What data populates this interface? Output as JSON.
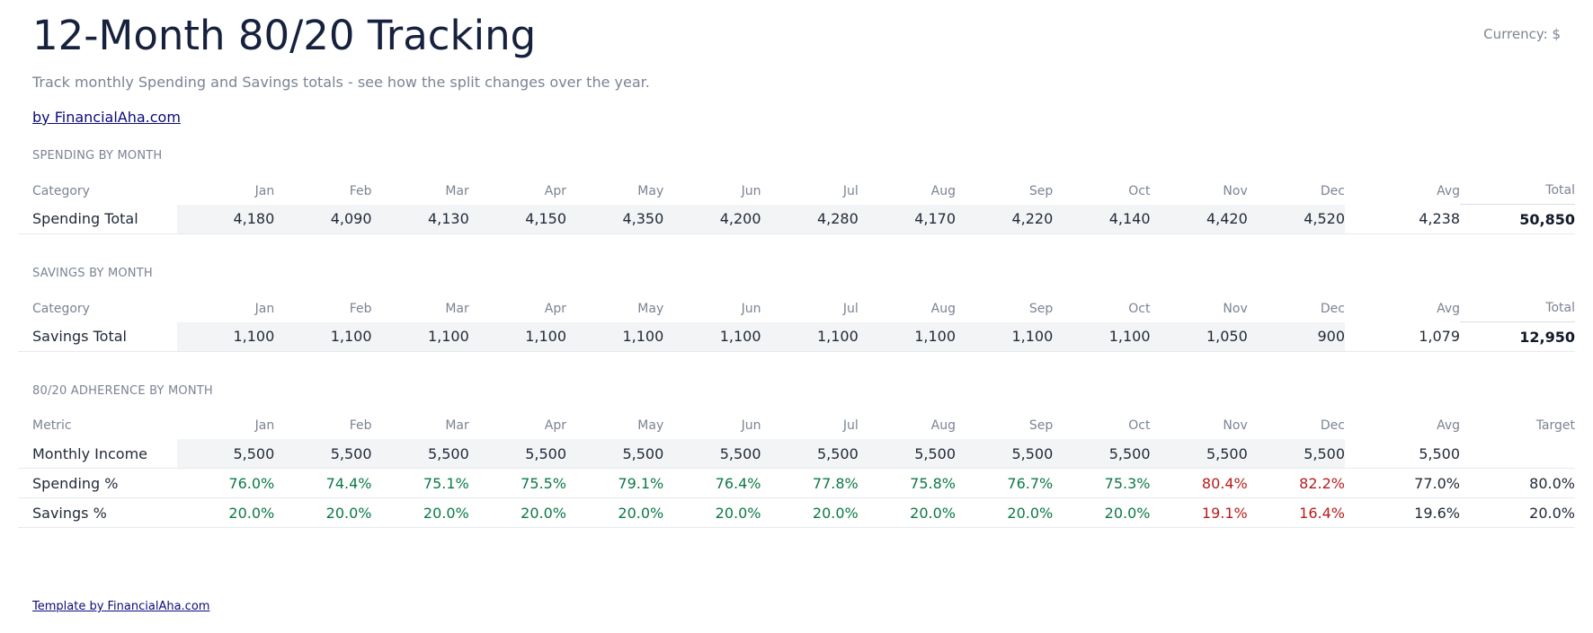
{
  "header": {
    "title": "12-Month 80/20 Tracking",
    "currency": "Currency: $",
    "subtitle": "Track monthly Spending and Savings totals - see how the split changes over the year.",
    "author_link": "by FinancialAha.com"
  },
  "months": [
    "Jan",
    "Feb",
    "Mar",
    "Apr",
    "May",
    "Jun",
    "Jul",
    "Aug",
    "Sep",
    "Oct",
    "Nov",
    "Dec"
  ],
  "spending": {
    "section_label": "SPENDING BY MONTH",
    "col_category": "Category",
    "col_avg": "Avg",
    "col_total": "Total",
    "row_label": "Spending Total",
    "values": [
      "4,180",
      "4,090",
      "4,130",
      "4,150",
      "4,350",
      "4,200",
      "4,280",
      "4,170",
      "4,220",
      "4,140",
      "4,420",
      "4,520"
    ],
    "avg": "4,238",
    "total": "50,850"
  },
  "savings": {
    "section_label": "SAVINGS BY MONTH",
    "col_category": "Category",
    "col_avg": "Avg",
    "col_total": "Total",
    "row_label": "Savings Total",
    "values": [
      "1,100",
      "1,100",
      "1,100",
      "1,100",
      "1,100",
      "1,100",
      "1,100",
      "1,100",
      "1,100",
      "1,100",
      "1,050",
      "900"
    ],
    "avg": "1,079",
    "total": "12,950"
  },
  "adherence": {
    "section_label": "80/20 ADHERENCE BY MONTH",
    "col_metric": "Metric",
    "col_avg": "Avg",
    "col_target": "Target",
    "rows": [
      {
        "label": "Monthly Income",
        "values": [
          "5,500",
          "5,500",
          "5,500",
          "5,500",
          "5,500",
          "5,500",
          "5,500",
          "5,500",
          "5,500",
          "5,500",
          "5,500",
          "5,500"
        ],
        "avg": "5,500",
        "target": ""
      },
      {
        "label": "Spending %",
        "values": [
          "76.0%",
          "74.4%",
          "75.1%",
          "75.5%",
          "79.1%",
          "76.4%",
          "77.8%",
          "75.8%",
          "76.7%",
          "75.3%",
          "80.4%",
          "82.2%"
        ],
        "status": [
          "ok",
          "ok",
          "ok",
          "ok",
          "ok",
          "ok",
          "ok",
          "ok",
          "ok",
          "ok",
          "bad",
          "bad"
        ],
        "avg": "77.0%",
        "target": "80.0%"
      },
      {
        "label": "Savings %",
        "values": [
          "20.0%",
          "20.0%",
          "20.0%",
          "20.0%",
          "20.0%",
          "20.0%",
          "20.0%",
          "20.0%",
          "20.0%",
          "20.0%",
          "19.1%",
          "16.4%"
        ],
        "status": [
          "ok",
          "ok",
          "ok",
          "ok",
          "ok",
          "ok",
          "ok",
          "ok",
          "ok",
          "ok",
          "bad",
          "bad"
        ],
        "avg": "19.6%",
        "target": "20.0%"
      }
    ]
  },
  "colors": {
    "on_target": "#0b7a45",
    "off_target": "#b91c1c",
    "title": "#16213d",
    "link": "#0b0b7a"
  },
  "footer": {
    "link": "Template by FinancialAha.com"
  }
}
